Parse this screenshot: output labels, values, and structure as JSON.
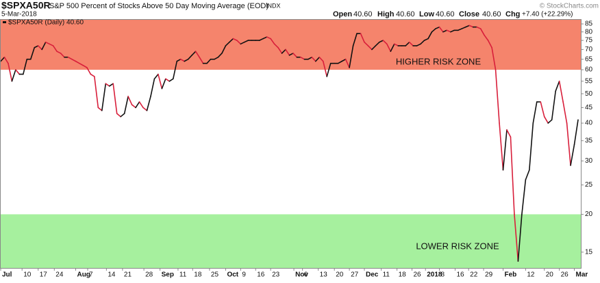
{
  "chart_data": {
    "type": "line",
    "log_scale": true,
    "grid": false,
    "header": {
      "symbol": "$SPXA50R",
      "description": "S&P 500 Percent of Stocks Above 50 Day Moving Average (EOD)",
      "exchange": "INDX",
      "date": "5-Mar-2018",
      "open_label": "Open",
      "open": "40.60",
      "high_label": "High",
      "high": "40.60",
      "low_label": "Low",
      "low": "40.60",
      "close_label": "Close",
      "close": "40.60",
      "chg_label": "Chg",
      "chg": "+7.40 (+22.29%)",
      "watermark": "© StockCharts.com"
    },
    "legend": "$SPXA50R (Daily) 40.60",
    "up_color": "#111111",
    "down_color": "#d81e3a",
    "zones": [
      {
        "label": "HIGHER RISK ZONE",
        "from": 60,
        "to": 87.7,
        "color": "#f5846c"
      },
      {
        "label": "LOWER RISK ZONE",
        "from": 13.3,
        "to": 20,
        "color": "#a6f09e"
      }
    ],
    "ylim": [
      13.3,
      87.7
    ],
    "yticks": [
      15,
      20,
      25,
      30,
      35,
      40,
      45,
      50,
      55,
      60,
      65,
      70,
      75,
      80,
      85
    ],
    "xlim": [
      0,
      154
    ],
    "xticks": [
      {
        "value": 0,
        "label": "Jul"
      },
      {
        "value": 5.7,
        "label": "10"
      },
      {
        "value": 10,
        "label": "17"
      },
      {
        "value": 14.3,
        "label": "24"
      },
      {
        "value": 20,
        "label": "Aug"
      },
      {
        "value": 23.2,
        "label": "7"
      },
      {
        "value": 28.2,
        "label": "14"
      },
      {
        "value": 32.5,
        "label": "21"
      },
      {
        "value": 38.2,
        "label": "28"
      },
      {
        "value": 42.5,
        "label": "Sep"
      },
      {
        "value": 47.3,
        "label": "11"
      },
      {
        "value": 51.2,
        "label": "18"
      },
      {
        "value": 55.7,
        "label": "25"
      },
      {
        "value": 60,
        "label": "Oct"
      },
      {
        "value": 64,
        "label": "9"
      },
      {
        "value": 68,
        "label": "16"
      },
      {
        "value": 72,
        "label": "23"
      },
      {
        "value": 78.2,
        "label": "Nov"
      },
      {
        "value": 80.5,
        "label": "6"
      },
      {
        "value": 84.7,
        "label": "13"
      },
      {
        "value": 89,
        "label": "20"
      },
      {
        "value": 93,
        "label": "27"
      },
      {
        "value": 97,
        "label": "Dec"
      },
      {
        "value": 101.5,
        "label": "11"
      },
      {
        "value": 105.7,
        "label": "18"
      },
      {
        "value": 109.7,
        "label": "26"
      },
      {
        "value": 113.3,
        "label": "2018"
      },
      {
        "value": 117,
        "label": "8"
      },
      {
        "value": 121.2,
        "label": "16"
      },
      {
        "value": 124.8,
        "label": "22"
      },
      {
        "value": 128.8,
        "label": "29"
      },
      {
        "value": 134,
        "label": "Feb"
      },
      {
        "value": 140,
        "label": "12"
      },
      {
        "value": 145,
        "label": "20"
      },
      {
        "value": 149,
        "label": "26"
      },
      {
        "value": 153,
        "label": "Mar"
      }
    ],
    "values": [
      64,
      66,
      63,
      55,
      60,
      58,
      58,
      65,
      65,
      71,
      72,
      70,
      74,
      73,
      72,
      69,
      68,
      66,
      66,
      65,
      64,
      63,
      62,
      61,
      58,
      57,
      45,
      44,
      54,
      53,
      54,
      43,
      42,
      43,
      49,
      46,
      45,
      47,
      45,
      44,
      49,
      56,
      58,
      52,
      56,
      55,
      56,
      64,
      65,
      64,
      65,
      67,
      69,
      66,
      63,
      63,
      65,
      65,
      66,
      68,
      72,
      74,
      76,
      75,
      73,
      74,
      75,
      75,
      75,
      75,
      76,
      77,
      76,
      73,
      71,
      68,
      70,
      67,
      68,
      66,
      66,
      65,
      65,
      66,
      64,
      66,
      64,
      57,
      63,
      63,
      63,
      64,
      65,
      61,
      72,
      79,
      79,
      74,
      72,
      70,
      72,
      74,
      75,
      73,
      69,
      73,
      72,
      72,
      72,
      74,
      72,
      72,
      73,
      75,
      76,
      80,
      82,
      83,
      80,
      81,
      80,
      81,
      81,
      82,
      83,
      84,
      83,
      83,
      82,
      78,
      75,
      71,
      60,
      40,
      28,
      38,
      36,
      20,
      14,
      20,
      26,
      28,
      40,
      47,
      47,
      42,
      40,
      41,
      51,
      55,
      47,
      40,
      29,
      34,
      41
    ]
  }
}
